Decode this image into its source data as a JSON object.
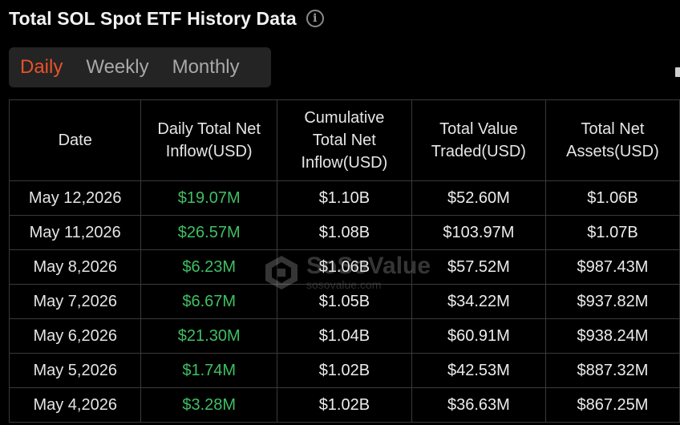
{
  "header": {
    "title": "Total SOL Spot ETF History Data",
    "info_icon": "i"
  },
  "tabs": [
    {
      "label": "Daily",
      "active": true
    },
    {
      "label": "Weekly",
      "active": false
    },
    {
      "label": "Monthly",
      "active": false
    }
  ],
  "table": {
    "headers": [
      "Date",
      "Daily Total Net Inflow(USD)",
      "Cumulative Total Net Inflow(USD)",
      "Total Value Traded(USD)",
      "Total Net Assets(USD)"
    ],
    "rows": [
      {
        "date": "May 12,2026",
        "daily_inflow": "$19.07M",
        "cumulative": "$1.10B",
        "traded": "$52.60M",
        "assets": "$1.06B"
      },
      {
        "date": "May 11,2026",
        "daily_inflow": "$26.57M",
        "cumulative": "$1.08B",
        "traded": "$103.97M",
        "assets": "$1.07B"
      },
      {
        "date": "May 8,2026",
        "daily_inflow": "$6.23M",
        "cumulative": "$1.06B",
        "traded": "$57.52M",
        "assets": "$987.43M"
      },
      {
        "date": "May 7,2026",
        "daily_inflow": "$6.67M",
        "cumulative": "$1.05B",
        "traded": "$34.22M",
        "assets": "$937.82M"
      },
      {
        "date": "May 6,2026",
        "daily_inflow": "$21.30M",
        "cumulative": "$1.04B",
        "traded": "$60.91M",
        "assets": "$938.24M"
      },
      {
        "date": "May 5,2026",
        "daily_inflow": "$1.74M",
        "cumulative": "$1.02B",
        "traded": "$42.53M",
        "assets": "$887.32M"
      },
      {
        "date": "May 4,2026",
        "daily_inflow": "$3.28M",
        "cumulative": "$1.02B",
        "traded": "$36.63M",
        "assets": "$867.25M"
      }
    ]
  },
  "watermark": {
    "brand": "SoSoValue",
    "url": "sosovalue.com"
  },
  "colors": {
    "accent": "#e8522a",
    "positive": "#3fbf63",
    "background": "#000000"
  }
}
